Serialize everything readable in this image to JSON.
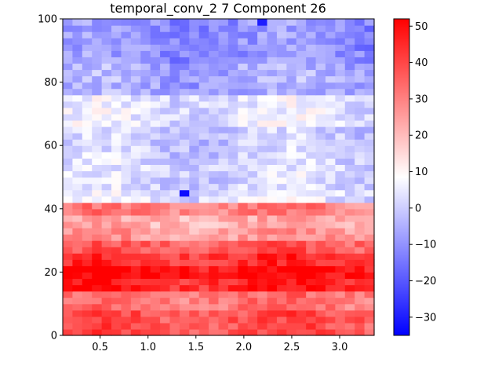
{
  "chart_data": {
    "type": "heatmap",
    "title": "temporal_conv_2 7 Component 26",
    "xlabel": "",
    "ylabel": "",
    "xlim": [
      0.11,
      3.36
    ],
    "ylim": [
      0,
      100
    ],
    "x_ticks": [
      0.5,
      1.0,
      1.5,
      2.0,
      2.5,
      3.0
    ],
    "x_tick_labels": [
      "0.5",
      "1.0",
      "1.5",
      "2.0",
      "2.5",
      "3.0"
    ],
    "y_ticks": [
      0,
      20,
      40,
      60,
      80,
      100
    ],
    "y_tick_labels": [
      "0",
      "20",
      "40",
      "60",
      "80",
      "100"
    ],
    "grid": false,
    "colormap": "bwr",
    "colorbar": {
      "vmin": -35,
      "vmax": 52,
      "ticks": [
        -30,
        -20,
        -10,
        0,
        10,
        20,
        30,
        40,
        50
      ],
      "tick_labels": [
        "−30",
        "−20",
        "−10",
        "0",
        "10",
        "20",
        "30",
        "40",
        "50"
      ]
    },
    "grid_shape": {
      "columns": 32,
      "rows": 50
    },
    "frequency_bands": [
      {
        "y_range": [
          0,
          8
        ],
        "approx_value": 38
      },
      {
        "y_range": [
          8,
          14
        ],
        "approx_value": 32
      },
      {
        "y_range": [
          14,
          18
        ],
        "approx_value": 46
      },
      {
        "y_range": [
          18,
          22
        ],
        "approx_value": 50
      },
      {
        "y_range": [
          22,
          26
        ],
        "approx_value": 44
      },
      {
        "y_range": [
          26,
          30
        ],
        "approx_value": 36
      },
      {
        "y_range": [
          30,
          34
        ],
        "approx_value": 26
      },
      {
        "y_range": [
          34,
          38
        ],
        "approx_value": 22
      },
      {
        "y_range": [
          38,
          42
        ],
        "approx_value": 30
      },
      {
        "y_range": [
          42,
          46
        ],
        "approx_value": 4
      },
      {
        "y_range": [
          46,
          56
        ],
        "approx_value": 2
      },
      {
        "y_range": [
          56,
          66
        ],
        "approx_value": 0
      },
      {
        "y_range": [
          66,
          76
        ],
        "approx_value": 4
      },
      {
        "y_range": [
          76,
          86
        ],
        "approx_value": -6
      },
      {
        "y_range": [
          86,
          100
        ],
        "approx_value": -10
      }
    ],
    "notable_cells": [
      {
        "x": 1.42,
        "y": 45,
        "value": -33
      },
      {
        "x": 2.2,
        "y": 99,
        "value": -30
      }
    ]
  }
}
